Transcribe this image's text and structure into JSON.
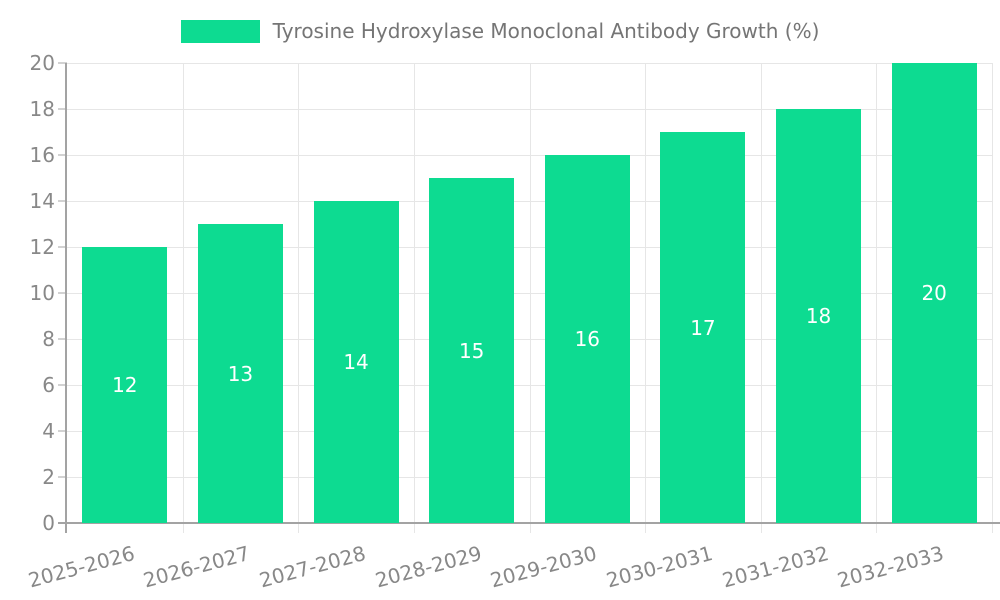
{
  "chart_data": {
    "type": "bar",
    "title": "Tyrosine Hydroxylase Monoclonal Antibody Growth (%)",
    "categories": [
      "2025-2026",
      "2026-2027",
      "2027-2028",
      "2028-2029",
      "2029-2030",
      "2030-2031",
      "2031-2032",
      "2032-2033"
    ],
    "values": [
      12,
      13,
      14,
      15,
      16,
      17,
      18,
      20
    ],
    "xlabel": "",
    "ylabel": "",
    "ylim": [
      0,
      20
    ],
    "ytick_step": 2,
    "ytick_labels": [
      "0",
      "2",
      "4",
      "6",
      "8",
      "10",
      "12",
      "14",
      "16",
      "18",
      "20"
    ],
    "grid": "on",
    "legend_position": "top",
    "colors": {
      "bar": "#0ddb91",
      "bar_value_label": "#ffffff",
      "legend_text": "#757575",
      "tick_text": "#888888",
      "gridline": "#e6e6e6",
      "axis_line": "#a3a3a3",
      "tick_mark": "#d2d2d2"
    }
  }
}
